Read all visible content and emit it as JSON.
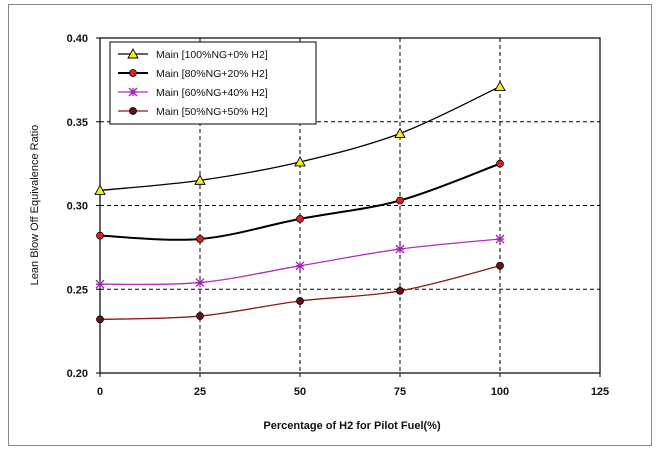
{
  "chart_data": {
    "type": "line",
    "title": "",
    "xlabel": "Percentage of H2 for Pilot Fuel(%)",
    "ylabel": "Lean Blow Off Equivalence Ratio",
    "xlim": [
      0,
      125
    ],
    "ylim": [
      0.2,
      0.4
    ],
    "x_ticks": [
      "0",
      "25",
      "50",
      "75",
      "100",
      "125"
    ],
    "y_ticks": [
      "0.20",
      "0.25",
      "0.30",
      "0.35",
      "0.40"
    ],
    "grid": "dashed at x=25,50,75,100 and y=0.25,0.30,0.35",
    "legend_position": "top-left",
    "x": [
      0,
      25,
      50,
      75,
      100
    ],
    "series": [
      {
        "name": "Main [100%NG+0% H2]",
        "marker": "triangle",
        "line_color": "#000000",
        "marker_color": "#f2ef1a",
        "values": [
          0.309,
          0.315,
          0.326,
          0.343,
          0.371
        ]
      },
      {
        "name": "Main [80%NG+20% H2]",
        "marker": "circle",
        "line_color": "#000000",
        "marker_color": "#e02020",
        "values": [
          0.282,
          0.28,
          0.292,
          0.303,
          0.325
        ]
      },
      {
        "name": "Main [60%NG+40% H2]",
        "marker": "star",
        "line_color": "#b030c0",
        "marker_color": "#a020b0",
        "values": [
          0.253,
          0.254,
          0.264,
          0.274,
          0.28
        ]
      },
      {
        "name": "Main [50%NG+50% H2]",
        "marker": "circle",
        "line_color": "#8b1a1a",
        "marker_color": "#6b1010",
        "values": [
          0.232,
          0.234,
          0.243,
          0.249,
          0.264
        ]
      }
    ]
  }
}
